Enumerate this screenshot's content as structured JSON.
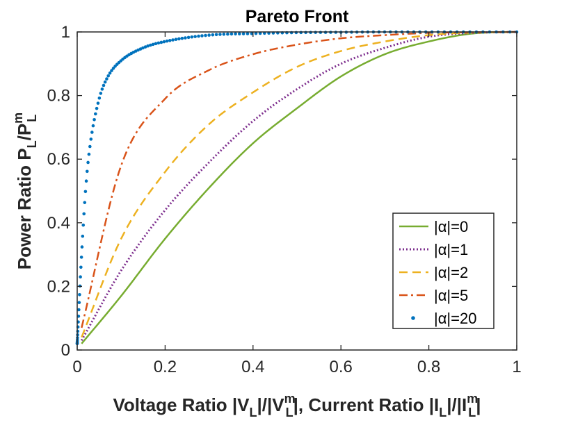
{
  "chart_data": {
    "type": "line",
    "title": "Pareto Front",
    "xlabel": {
      "main": "Voltage Ratio |V",
      "sub1": "L",
      "mid1": "|/|V",
      "sup1": "m",
      "sub1b": "L",
      "mid2": "|, Current Ratio |I",
      "sub2": "L",
      "mid3": "|/|I",
      "sup2": "m",
      "sub2b": "L",
      "end": "|"
    },
    "ylabel": {
      "main": "Power Ratio P",
      "sub1": "L",
      "mid": "/P",
      "sup": "m",
      "sub2": "L"
    },
    "xlim": [
      0,
      1
    ],
    "ylim": [
      0,
      1
    ],
    "xticks": [
      "0",
      "0.2",
      "0.4",
      "0.6",
      "0.8",
      "1"
    ],
    "yticks": [
      "0",
      "0.2",
      "0.4",
      "0.6",
      "0.8",
      "1"
    ],
    "xtick_values": [
      0,
      0.2,
      0.4,
      0.6,
      0.8,
      1
    ],
    "ytick_values": [
      0,
      0.2,
      0.4,
      0.6,
      0.8,
      1
    ],
    "grid": false,
    "legend_position": "bottom-right",
    "series": [
      {
        "name": "|α|=0",
        "alpha": 0,
        "color": "#77ac30",
        "style": "solid",
        "x": [
          0.01,
          0.1,
          0.2,
          0.3,
          0.4,
          0.5,
          0.6,
          0.7,
          0.8,
          0.9,
          1.0
        ],
        "y": [
          0.02,
          0.17,
          0.35,
          0.51,
          0.65,
          0.76,
          0.86,
          0.93,
          0.97,
          0.995,
          1.0
        ]
      },
      {
        "name": "|α|=1",
        "alpha": 1,
        "color": "#7e2f8e",
        "style": "dotted",
        "x": [
          0.01,
          0.1,
          0.2,
          0.3,
          0.4,
          0.5,
          0.6,
          0.7,
          0.8,
          0.9,
          1.0
        ],
        "y": [
          0.03,
          0.25,
          0.44,
          0.59,
          0.72,
          0.82,
          0.9,
          0.95,
          0.985,
          0.997,
          1.0
        ]
      },
      {
        "name": "|α|=2",
        "alpha": 2,
        "color": "#edb120",
        "style": "dashed",
        "x": [
          0.01,
          0.1,
          0.2,
          0.3,
          0.4,
          0.5,
          0.6,
          0.7,
          0.8,
          0.9,
          1.0
        ],
        "y": [
          0.04,
          0.35,
          0.56,
          0.71,
          0.81,
          0.89,
          0.94,
          0.97,
          0.99,
          0.998,
          1.0
        ]
      },
      {
        "name": "|α|=5",
        "alpha": 5,
        "color": "#d95319",
        "style": "dashdot",
        "x": [
          0.01,
          0.1,
          0.2,
          0.3,
          0.4,
          0.5,
          0.6,
          0.7,
          0.8,
          0.9,
          1.0
        ],
        "y": [
          0.07,
          0.58,
          0.79,
          0.88,
          0.93,
          0.96,
          0.98,
          0.99,
          0.997,
          0.999,
          1.0
        ]
      },
      {
        "name": "|α|=20",
        "alpha": 20,
        "color": "#0072bd",
        "style": "points",
        "x": [
          0.0,
          0.01,
          0.02,
          0.03,
          0.05,
          0.07,
          0.1,
          0.15,
          0.2,
          0.3,
          0.4,
          0.5,
          0.6,
          0.7,
          0.8,
          0.9,
          1.0
        ],
        "y": [
          0.02,
          0.3,
          0.52,
          0.65,
          0.79,
          0.86,
          0.91,
          0.95,
          0.97,
          0.99,
          0.995,
          0.998,
          0.999,
          1.0,
          1.0,
          1.0,
          1.0
        ]
      }
    ]
  }
}
